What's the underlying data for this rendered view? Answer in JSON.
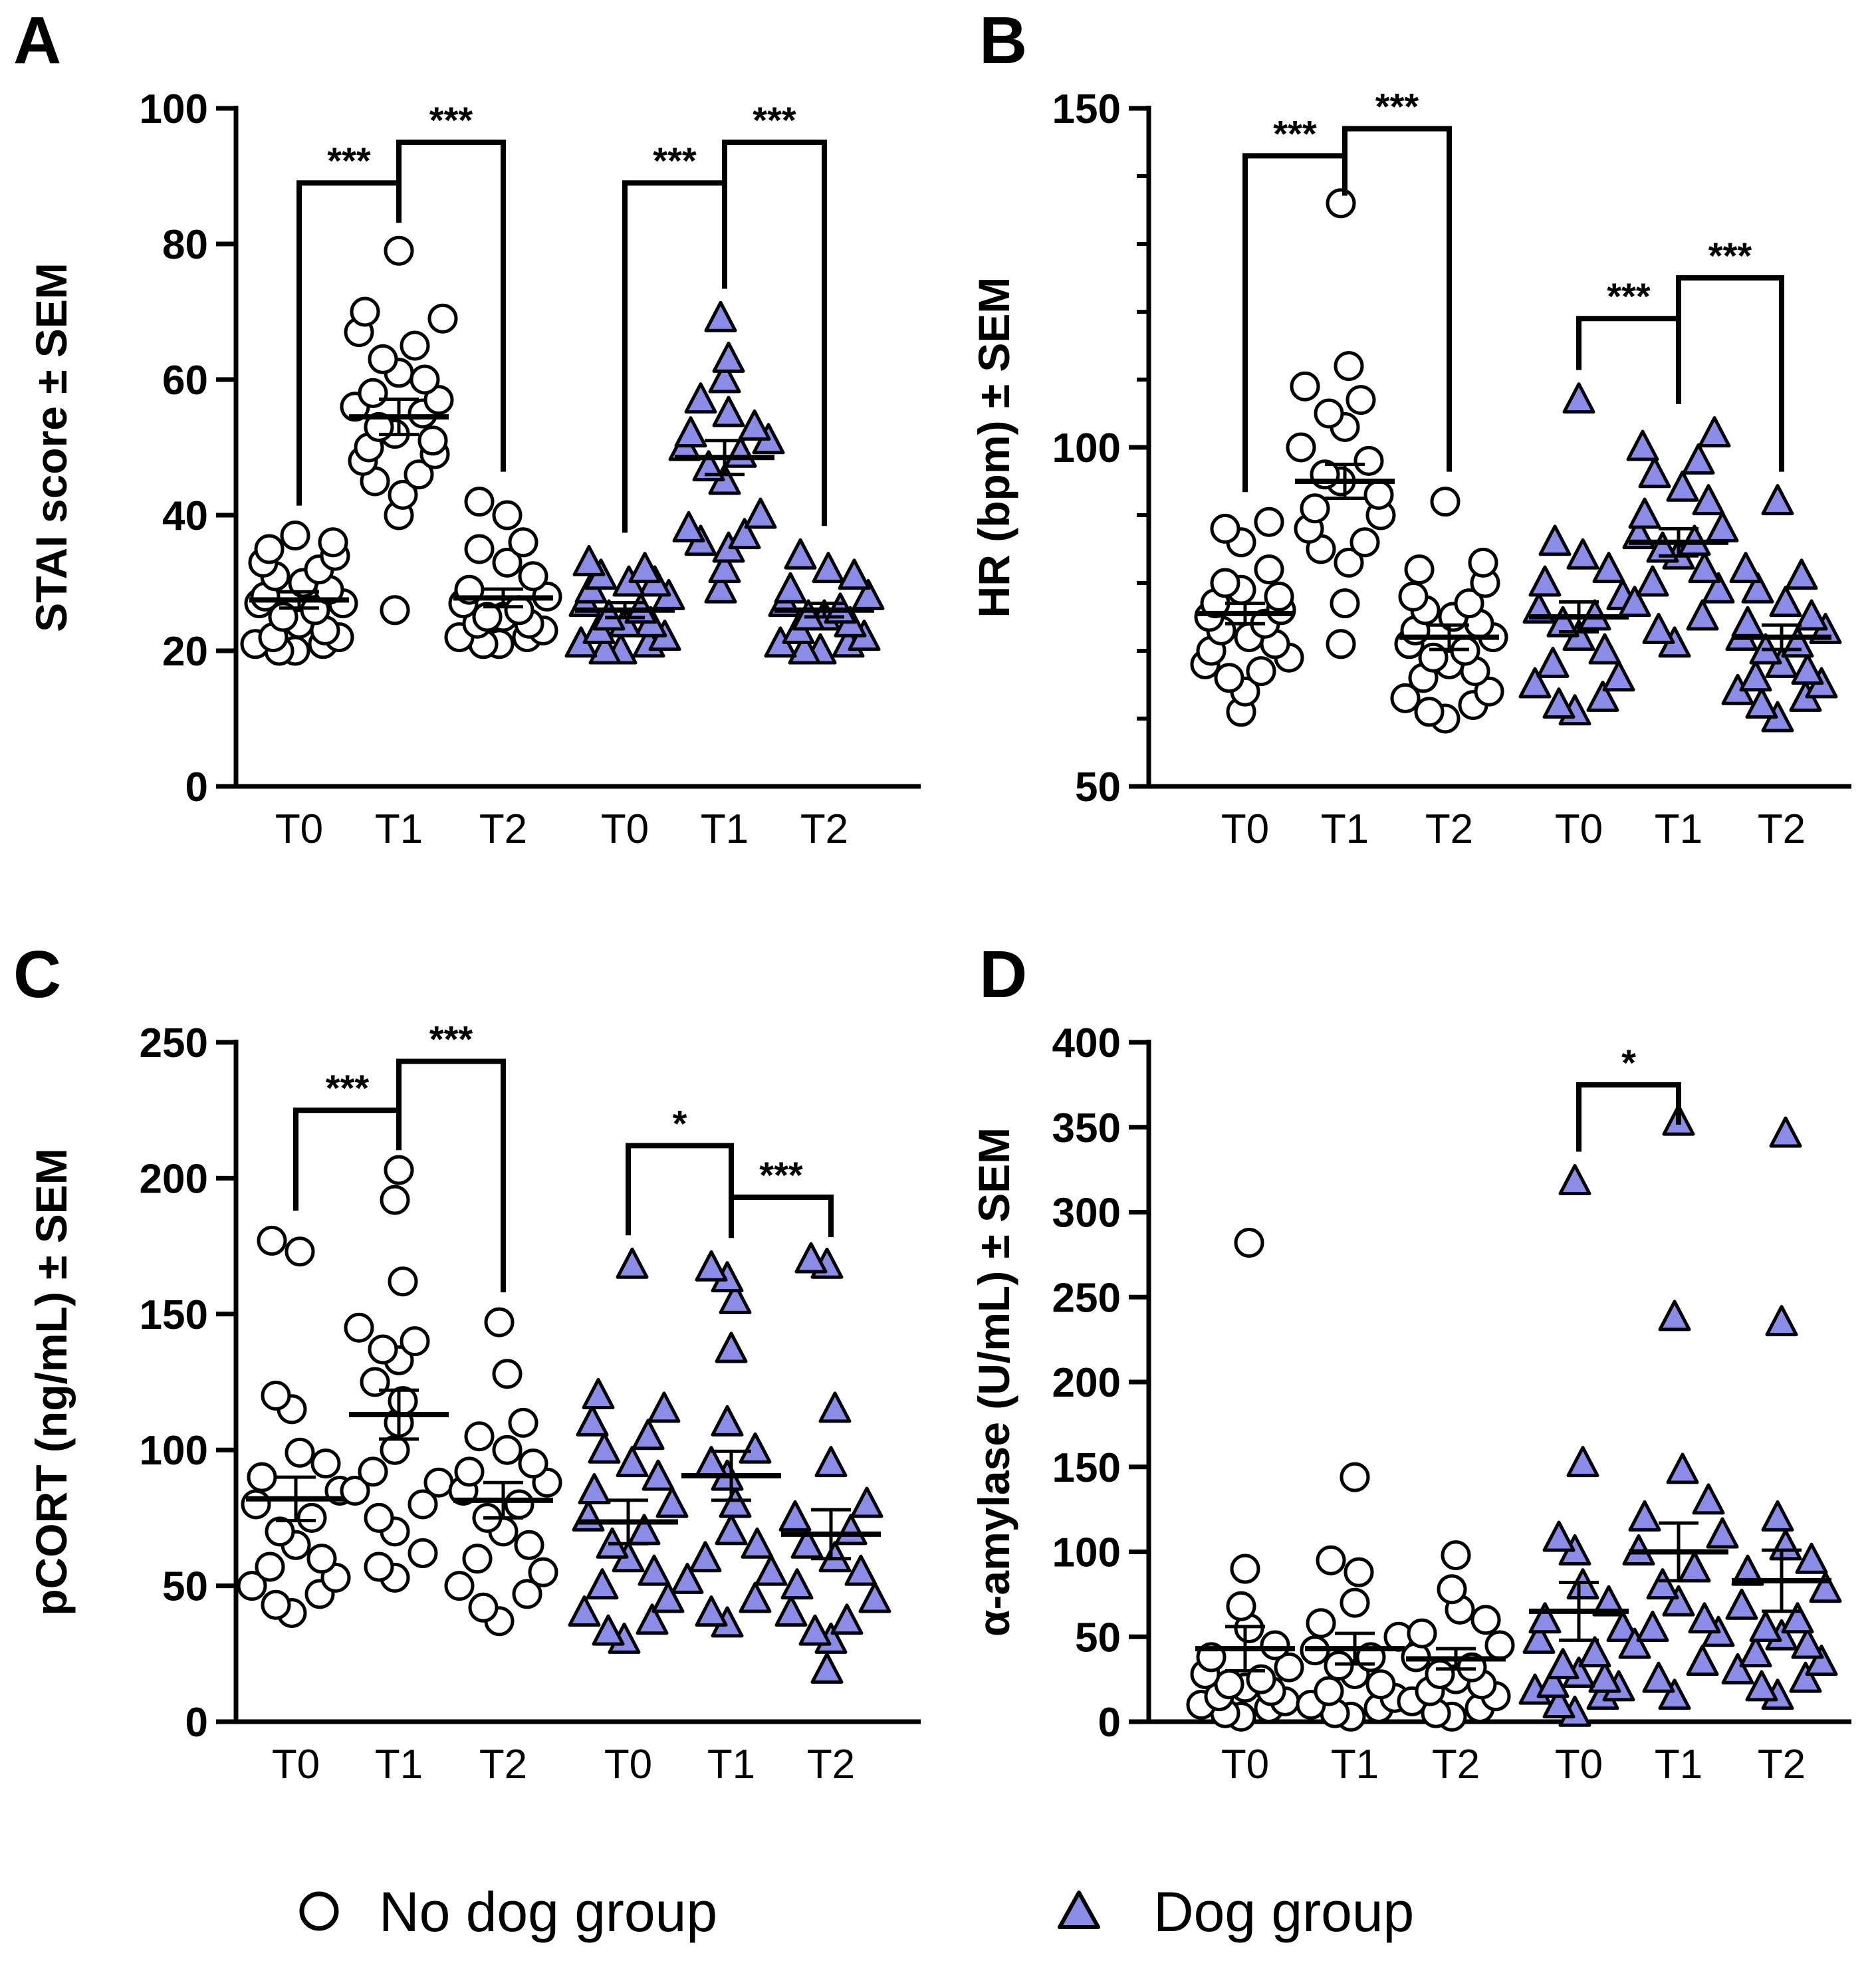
{
  "figure": {
    "legend": [
      {
        "label": "No dog group",
        "marker": "circle",
        "color": "#ffffff"
      },
      {
        "label": "Dog group",
        "marker": "triangle",
        "color": "#8b8be8"
      }
    ]
  },
  "chart_data": [
    {
      "panel": "A",
      "type": "scatter",
      "ylabel": "STAI score ± SEM",
      "ylim": [
        0,
        100
      ],
      "yticks": [
        0,
        20,
        40,
        60,
        80,
        100
      ],
      "yticks_minor": [],
      "categories": [
        "T0",
        "T1",
        "T2",
        "T0",
        "T1",
        "T2"
      ],
      "groups": [
        {
          "name": "No dog group",
          "marker": "circle",
          "color": "#ffffff",
          "series": [
            {
              "cat": "T0",
              "mean": 27.5,
              "sem": 1.2,
              "values": [
                20,
                20,
                21,
                21,
                22,
                22,
                23,
                24,
                25,
                26,
                27,
                27,
                28,
                29,
                30,
                31,
                32,
                33,
                34,
                35,
                36,
                37
              ]
            },
            {
              "cat": "T1",
              "mean": 54.5,
              "sem": 2.6,
              "values": [
                26,
                40,
                43,
                45,
                46,
                48,
                49,
                50,
                51,
                52,
                53,
                55,
                56,
                57,
                58,
                60,
                61,
                63,
                65,
                67,
                69,
                70,
                79
              ]
            },
            {
              "cat": "T2",
              "mean": 27.8,
              "sem": 1.3,
              "values": [
                21,
                21,
                22,
                22,
                23,
                24,
                24,
                25,
                25,
                26,
                27,
                28,
                29,
                31,
                33,
                35,
                36,
                40,
                42
              ]
            }
          ]
        },
        {
          "name": "Dog group",
          "marker": "triangle",
          "color": "#8b8be8",
          "series": [
            {
              "cat": "T0",
              "mean": 26.0,
              "sem": 1.1,
              "values": [
                20,
                20,
                21,
                21,
                22,
                23,
                24,
                24,
                25,
                26,
                27,
                28,
                29,
                30,
                30,
                31,
                32,
                33
              ]
            },
            {
              "cat": "T1",
              "mean": 48.5,
              "sem": 2.5,
              "values": [
                29,
                32,
                35,
                36,
                37,
                38,
                40,
                45,
                47,
                49,
                50,
                51,
                52,
                53,
                55,
                57,
                60,
                63,
                69
              ]
            },
            {
              "cat": "T2",
              "mean": 26.0,
              "sem": 1.0,
              "values": [
                20,
                20,
                21,
                21,
                22,
                23,
                24,
                25,
                25,
                26,
                27,
                28,
                29,
                31,
                32,
                34
              ]
            }
          ]
        }
      ],
      "significance": [
        {
          "from": 0,
          "to": 1,
          "y": 89,
          "label": "***"
        },
        {
          "from": 1,
          "to": 2,
          "y": 95,
          "label": "***"
        },
        {
          "from": 3,
          "to": 4,
          "y": 89,
          "label": "***"
        },
        {
          "from": 4,
          "to": 5,
          "y": 95,
          "label": "***"
        }
      ]
    },
    {
      "panel": "B",
      "type": "scatter",
      "ylabel": "HR (bpm) ± SEM",
      "ylim": [
        50,
        150
      ],
      "yticks": [
        50,
        100,
        150
      ],
      "yticks_minor": [
        60,
        70,
        80,
        90,
        110,
        120,
        130,
        140
      ],
      "categories": [
        "T0",
        "T1",
        "T2",
        "T0",
        "T1",
        "T2"
      ],
      "groups": [
        {
          "name": "No dog group",
          "marker": "circle",
          "color": "#ffffff",
          "series": [
            {
              "cat": "T0",
              "mean": 75.5,
              "sem": 1.5,
              "values": [
                61,
                64,
                66,
                67,
                68,
                69,
                70,
                71,
                72,
                73,
                74,
                75,
                76,
                77,
                78,
                79,
                80,
                82,
                86,
                88,
                89
              ]
            },
            {
              "cat": "T1",
              "mean": 95.0,
              "sem": 2.5,
              "values": [
                71,
                77,
                83,
                85,
                86,
                88,
                90,
                91,
                93,
                95,
                96,
                98,
                100,
                103,
                105,
                107,
                109,
                112,
                136
              ]
            },
            {
              "cat": "T2",
              "mean": 72.0,
              "sem": 1.8,
              "values": [
                60,
                61,
                62,
                63,
                64,
                66,
                67,
                68,
                69,
                70,
                71,
                72,
                73,
                74,
                75,
                76,
                77,
                78,
                80,
                82,
                83,
                92
              ]
            }
          ]
        },
        {
          "name": "Dog group",
          "marker": "triangle",
          "color": "#8b8be8",
          "series": [
            {
              "cat": "T0",
              "mean": 75.0,
              "sem": 2.2,
              "values": [
                61,
                62,
                63,
                65,
                66,
                68,
                70,
                72,
                74,
                75,
                76,
                78,
                80,
                82,
                84,
                86,
                107
              ]
            },
            {
              "cat": "T1",
              "mean": 86.0,
              "sem": 2.0,
              "values": [
                71,
                73,
                75,
                77,
                79,
                80,
                82,
                84,
                85,
                86,
                87,
                88,
                90,
                92,
                94,
                96,
                98,
                100,
                102
              ]
            },
            {
              "cat": "T2",
              "mean": 72.0,
              "sem": 1.8,
              "values": [
                60,
                62,
                63,
                64,
                65,
                66,
                67,
                68,
                70,
                71,
                72,
                73,
                74,
                75,
                77,
                79,
                81,
                82,
                92
              ]
            }
          ]
        }
      ],
      "significance": [
        {
          "from": 0,
          "to": 1,
          "y": 143,
          "label": "***"
        },
        {
          "from": 1,
          "to": 2,
          "y": 147,
          "label": "***"
        },
        {
          "from": 3,
          "to": 4,
          "y": 119,
          "label": "***"
        },
        {
          "from": 4,
          "to": 5,
          "y": 125,
          "label": "***"
        }
      ]
    },
    {
      "panel": "C",
      "type": "scatter",
      "ylabel": "pCORT (ng/mL) ± SEM",
      "ylim": [
        0,
        250
      ],
      "yticks": [
        0,
        50,
        100,
        150,
        200,
        250
      ],
      "yticks_minor": [],
      "categories": [
        "T0",
        "T1",
        "T2",
        "T0",
        "T1",
        "T2"
      ],
      "groups": [
        {
          "name": "No dog group",
          "marker": "circle",
          "color": "#ffffff",
          "series": [
            {
              "cat": "T0",
              "mean": 82,
              "sem": 8,
              "values": [
                40,
                43,
                47,
                50,
                53,
                57,
                60,
                65,
                70,
                75,
                80,
                85,
                90,
                95,
                99,
                115,
                120,
                173,
                177
              ]
            },
            {
              "cat": "T1",
              "mean": 113,
              "sem": 9,
              "values": [
                53,
                57,
                62,
                70,
                75,
                80,
                85,
                88,
                92,
                100,
                110,
                118,
                125,
                133,
                137,
                140,
                145,
                162,
                192,
                203
              ]
            },
            {
              "cat": "T2",
              "mean": 81.5,
              "sem": 6.5,
              "values": [
                37,
                42,
                47,
                50,
                55,
                60,
                65,
                70,
                75,
                80,
                85,
                88,
                92,
                95,
                100,
                105,
                110,
                128,
                147
              ]
            }
          ]
        },
        {
          "name": "Dog group",
          "marker": "triangle",
          "color": "#8b8be8",
          "series": [
            {
              "cat": "T0",
              "mean": 73.5,
              "sem": 8,
              "values": [
                30,
                33,
                37,
                40,
                45,
                50,
                55,
                60,
                65,
                70,
                75,
                80,
                85,
                90,
                95,
                100,
                105,
                110,
                115,
                120,
                168
              ]
            },
            {
              "cat": "T1",
              "mean": 90.5,
              "sem": 9,
              "values": [
                36,
                40,
                45,
                52,
                55,
                60,
                65,
                70,
                80,
                90,
                95,
                100,
                110,
                137,
                155,
                163,
                167
              ]
            },
            {
              "cat": "T2",
              "mean": 69,
              "sem": 9,
              "values": [
                19,
                30,
                33,
                37,
                40,
                45,
                50,
                55,
                60,
                65,
                70,
                75,
                80,
                95,
                115,
                168,
                170
              ]
            }
          ]
        }
      ],
      "significance": [
        {
          "from": 0,
          "to": 1,
          "y": 225,
          "label": "***"
        },
        {
          "from": 1,
          "to": 2,
          "y": 243,
          "label": "***"
        },
        {
          "from": 3,
          "to": 4,
          "y": 212,
          "label": "*"
        },
        {
          "from": 4,
          "to": 5,
          "y": 193,
          "label": "***"
        }
      ]
    },
    {
      "panel": "D",
      "type": "scatter",
      "ylabel": "α-amylase (U/mL) ± SEM",
      "ylim": [
        0,
        400
      ],
      "yticks": [
        0,
        50,
        100,
        150,
        200,
        250,
        300,
        350,
        400
      ],
      "yticks_minor": [],
      "categories": [
        "T0",
        "T1",
        "T2",
        "T0",
        "T1",
        "T2"
      ],
      "groups": [
        {
          "name": "No dog group",
          "marker": "circle",
          "color": "#ffffff",
          "series": [
            {
              "cat": "T0",
              "mean": 43,
              "sem": 13,
              "values": [
                3,
                5,
                8,
                10,
                12,
                15,
                18,
                20,
                22,
                25,
                28,
                32,
                38,
                45,
                55,
                68,
                90,
                282
              ]
            },
            {
              "cat": "T1",
              "mean": 43,
              "sem": 9,
              "values": [
                3,
                5,
                8,
                10,
                14,
                18,
                22,
                28,
                33,
                38,
                42,
                50,
                58,
                70,
                88,
                95,
                144
              ]
            },
            {
              "cat": "T2",
              "mean": 37,
              "sem": 6,
              "values": [
                3,
                5,
                8,
                12,
                15,
                18,
                22,
                25,
                28,
                32,
                38,
                45,
                52,
                60,
                66,
                78,
                98
              ]
            }
          ]
        },
        {
          "name": "Dog group",
          "marker": "triangle",
          "color": "#8b8be8",
          "series": [
            {
              "cat": "T0",
              "mean": 65,
              "sem": 17,
              "values": [
                5,
                10,
                15,
                18,
                20,
                22,
                25,
                28,
                33,
                40,
                48,
                55,
                60,
                70,
                80,
                100,
                108,
                152,
                318
              ]
            },
            {
              "cat": "T1",
              "mean": 100,
              "sem": 17,
              "values": [
                15,
                25,
                35,
                45,
                52,
                55,
                60,
                70,
                80,
                90,
                100,
                110,
                120,
                130,
                148,
                238,
                353
              ]
            },
            {
              "cat": "T2",
              "mean": 83,
              "sem": 18,
              "values": [
                15,
                20,
                25,
                30,
                35,
                40,
                45,
                50,
                55,
                60,
                68,
                78,
                88,
                95,
                103,
                120,
                235,
                346
              ]
            }
          ]
        }
      ],
      "significance": [
        {
          "from": 3,
          "to": 4,
          "y": 375,
          "label": "*"
        }
      ]
    }
  ]
}
